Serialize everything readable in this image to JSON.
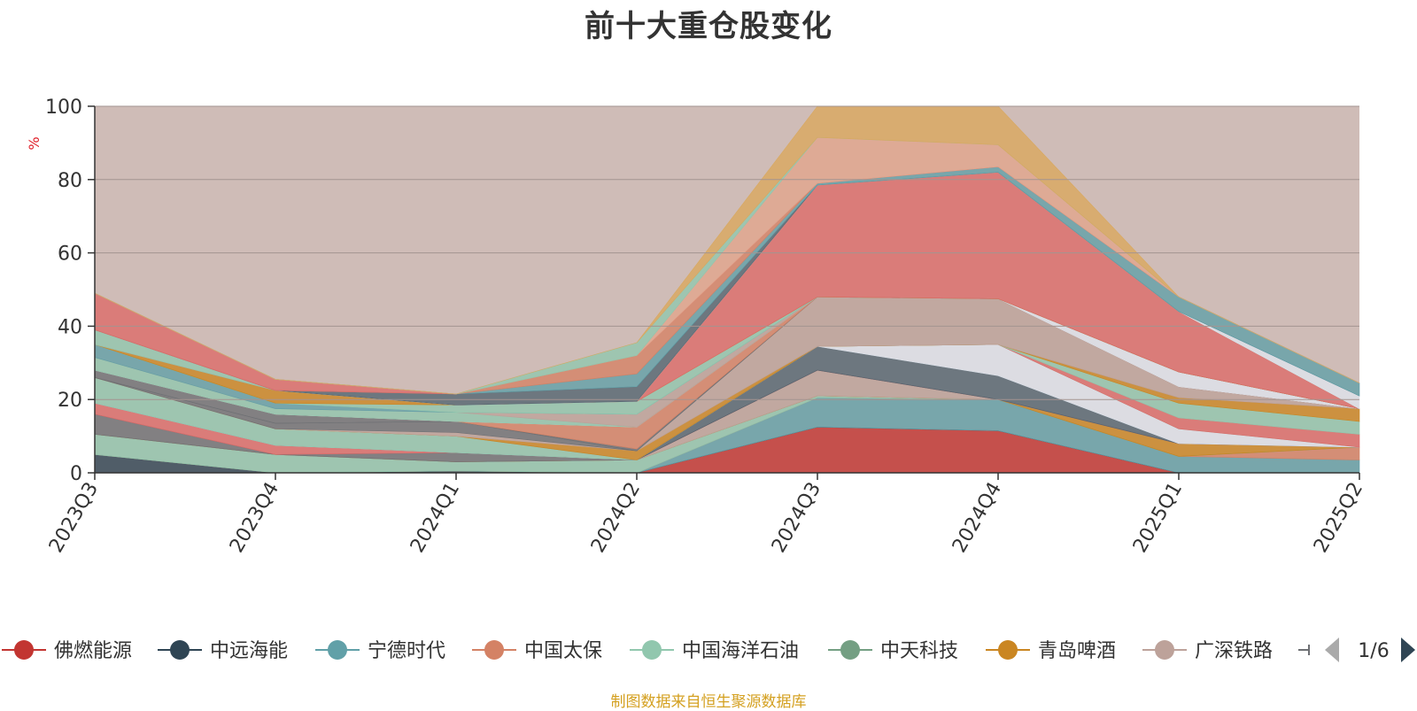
{
  "title": "前十大重仓股变化",
  "footer": "制图数据来自恒生聚源数据库",
  "legend": {
    "page_indicator": "1/6"
  },
  "chart_data": {
    "type": "area",
    "stacked": true,
    "title": "前十大重仓股变化",
    "ylabel": "%",
    "ylim": [
      0,
      100
    ],
    "yticks": [
      0,
      20,
      40,
      60,
      80,
      100
    ],
    "grid": true,
    "legend_position": "bottom",
    "categories": [
      "2023Q3",
      "2023Q4",
      "2024Q1",
      "2024Q2",
      "2024Q3",
      "2024Q4",
      "2025Q1",
      "2025Q2"
    ],
    "series": [
      {
        "name": "佛燃能源",
        "color": "#c23531",
        "values": [
          0,
          0,
          0,
          0,
          12.5,
          11.5,
          0,
          0
        ]
      },
      {
        "name": "中远海能",
        "color": "#2f4554",
        "values": [
          5,
          0,
          0.5,
          0,
          0,
          0,
          0,
          0
        ]
      },
      {
        "name": "宁德时代",
        "color": "#61a0a8",
        "values": [
          0,
          0,
          0,
          0,
          8,
          8.5,
          4.5,
          3.5
        ]
      },
      {
        "name": "中国太保",
        "color": "#d48265",
        "values": [
          0,
          0,
          0,
          0,
          0,
          0,
          0,
          3.5
        ]
      },
      {
        "name": "中国海洋石油",
        "color": "#91c7ae",
        "values": [
          5.5,
          5,
          2.5,
          3.5,
          0.5,
          0,
          0,
          0
        ]
      },
      {
        "name": "中天科技",
        "color": "#749f83",
        "values": [
          0,
          0,
          0,
          0,
          0,
          0,
          0,
          0
        ]
      },
      {
        "name": "青岛啤酒",
        "color": "#ca8622",
        "values": [
          0,
          0,
          0,
          0,
          0,
          0,
          3.5,
          0
        ]
      },
      {
        "name": "广深铁路",
        "color": "#bda29a",
        "values": [
          0,
          0,
          0,
          0,
          7,
          0,
          0,
          0
        ]
      },
      {
        "name": "",
        "color": "#6e7074",
        "values": [
          5.5,
          0,
          2.5,
          0,
          0,
          0,
          0,
          0
        ]
      },
      {
        "name": "",
        "color": "#dc6b69",
        "values": [
          3,
          2.5,
          0,
          0,
          0,
          0,
          0,
          0
        ]
      },
      {
        "name": "",
        "color": "#546570",
        "values": [
          0,
          0,
          0,
          0,
          6.5,
          6.5,
          0,
          0
        ]
      },
      {
        "name": "",
        "color": "#dfe4ec",
        "values": [
          0,
          0,
          0,
          0,
          0,
          8.5,
          4,
          0
        ]
      },
      {
        "name": "",
        "color": "#91c7ae",
        "values": [
          7,
          4.5,
          4.5,
          0,
          0,
          0,
          0,
          0
        ]
      },
      {
        "name": "",
        "color": "#dc6b69",
        "values": [
          0,
          0,
          0,
          0,
          0,
          0,
          3,
          3.5
        ]
      },
      {
        "name": "",
        "color": "#91c7ae",
        "values": [
          0,
          0,
          0,
          0,
          0,
          0,
          4,
          3.5
        ]
      },
      {
        "name": "",
        "color": "#ca8622",
        "values": [
          0,
          0,
          0,
          2.5,
          0,
          0,
          1.5,
          3.5
        ]
      },
      {
        "name": "",
        "color": "#bda29a",
        "values": [
          0,
          0,
          1,
          0,
          13.5,
          12.5,
          3,
          0
        ]
      },
      {
        "name": "",
        "color": "#6e7074",
        "values": [
          0,
          1.5,
          3,
          0,
          0,
          0,
          0,
          0
        ]
      },
      {
        "name": "",
        "color": "#6e7074",
        "values": [
          2,
          2.5,
          0,
          0.5,
          0,
          0,
          0,
          0
        ]
      },
      {
        "name": "",
        "color": "#d48265",
        "values": [
          0,
          0,
          0,
          6,
          0,
          0,
          0,
          0
        ]
      },
      {
        "name": "",
        "color": "#dfe4ec",
        "values": [
          0,
          0,
          0,
          0,
          0,
          0,
          4,
          0
        ]
      },
      {
        "name": "",
        "color": "#91c7ae",
        "values": [
          3.5,
          1.5,
          2.5,
          0,
          0,
          0,
          0,
          0
        ]
      },
      {
        "name": "",
        "color": "#bda29a",
        "values": [
          0,
          0,
          0,
          3.5,
          0,
          0,
          0,
          0
        ]
      },
      {
        "name": "",
        "color": "#61a0a8",
        "values": [
          3.5,
          1.5,
          0,
          0,
          0,
          0,
          0,
          0
        ]
      },
      {
        "name": "",
        "color": "#91c7ae",
        "values": [
          0,
          0,
          2,
          3.5,
          0,
          0,
          0,
          0
        ]
      },
      {
        "name": "",
        "color": "#ca8622",
        "values": [
          0,
          3.5,
          0,
          0,
          0,
          0,
          0,
          0
        ]
      },
      {
        "name": "",
        "color": "#dc6b69",
        "values": [
          0,
          0,
          0,
          0,
          30.5,
          34.5,
          16.5,
          0
        ]
      },
      {
        "name": "",
        "color": "#91c7ae",
        "values": [
          4,
          0,
          0,
          0,
          0,
          0,
          0,
          0
        ]
      },
      {
        "name": "",
        "color": "#dfe4ec",
        "values": [
          0,
          0,
          0,
          0,
          0,
          0,
          0,
          3.5
        ]
      },
      {
        "name": "",
        "color": "#546570",
        "values": [
          0,
          0,
          3,
          4,
          0,
          0,
          0,
          0
        ]
      },
      {
        "name": "",
        "color": "#61a0a8",
        "values": [
          0,
          0,
          0,
          3.5,
          0.5,
          1.5,
          4,
          3.5
        ]
      },
      {
        "name": "",
        "color": "#d48265",
        "values": [
          0,
          0,
          0,
          5,
          0,
          0,
          0,
          0
        ]
      },
      {
        "name": "",
        "color": "#dc6b69",
        "values": [
          10,
          3,
          0,
          0,
          0,
          0,
          0,
          0
        ]
      },
      {
        "name": "",
        "color": "#e1a58c",
        "values": [
          0,
          0,
          0,
          0,
          12.5,
          6,
          0,
          0
        ]
      },
      {
        "name": "",
        "color": "#91c7ae",
        "values": [
          0,
          0,
          0,
          3.5,
          0,
          0,
          0,
          0
        ]
      },
      {
        "name": "",
        "color": "#d9a85e",
        "values": [
          0,
          0,
          0,
          0,
          9.5,
          12.5,
          0,
          0
        ]
      }
    ]
  }
}
